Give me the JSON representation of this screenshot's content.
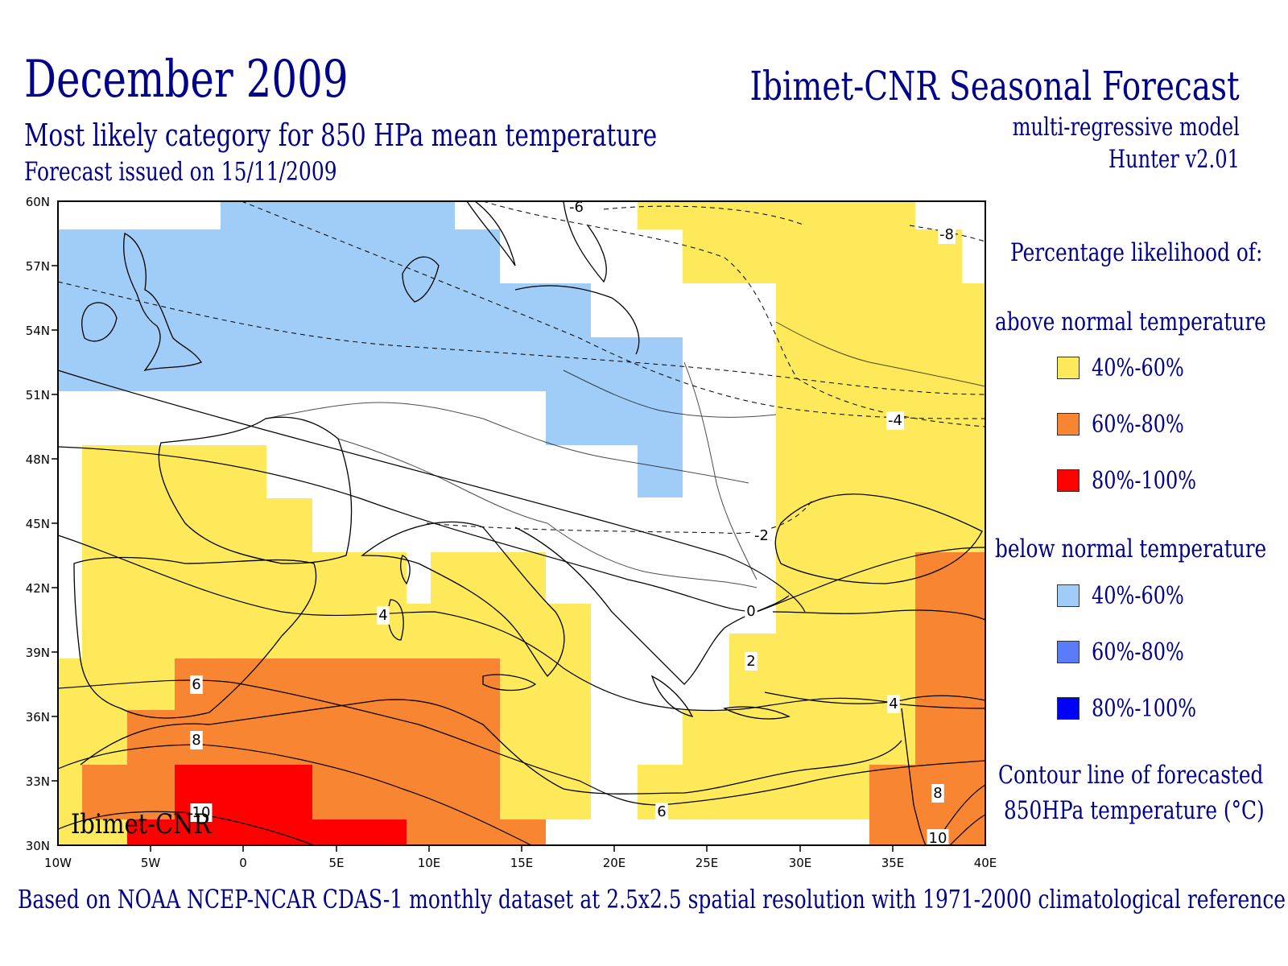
{
  "header": {
    "title": "December 2009",
    "subtitle": "Most likely category for 850 HPa mean temperature",
    "issued": "Forecast issued on 15/11/2009",
    "org_title": "Ibimet-CNR Seasonal Forecast",
    "model": "multi-regressive model",
    "version": "Hunter v2.01"
  },
  "map": {
    "lon_ticks": [
      "10W",
      "5W",
      "0",
      "5E",
      "10E",
      "15E",
      "20E",
      "25E",
      "30E",
      "35E",
      "40E"
    ],
    "lat_ticks": [
      "60N",
      "57N",
      "54N",
      "51N",
      "48N",
      "45N",
      "42N",
      "39N",
      "36N",
      "33N",
      "30N"
    ],
    "watermark": "Ibimet-CNR",
    "contour_labels": [
      "-8",
      "-6",
      "-4",
      "-2",
      "0",
      "2",
      "4",
      "6",
      "8",
      "10"
    ],
    "label_x": [
      "-6",
      "-8",
      "-4",
      "-2",
      "0",
      "2",
      "4",
      "4",
      "6",
      "6",
      "8",
      "8",
      "10",
      "10"
    ]
  },
  "legend": {
    "heading": "Percentage likelihood of:",
    "above_title": "above normal temperature",
    "above": [
      {
        "label": "40%-60%",
        "color": "#fde95a"
      },
      {
        "label": "60%-80%",
        "color": "#f88532"
      },
      {
        "label": "80%-100%",
        "color": "#ff0000"
      }
    ],
    "below_title": "below normal temperature",
    "below": [
      {
        "label": "40%-60%",
        "color": "#9fcdf7"
      },
      {
        "label": "60%-80%",
        "color": "#5b7cf8"
      },
      {
        "label": "80%-100%",
        "color": "#0000ff"
      }
    ],
    "contour_title_1": "Contour line of forecasted",
    "contour_title_2": "850HPa temperature (°C)"
  },
  "footer": "Based on NOAA NCEP-NCAR CDAS-1 monthly dataset at 2.5x2.5 spatial resolution with 1971-2000 climatological reference"
}
